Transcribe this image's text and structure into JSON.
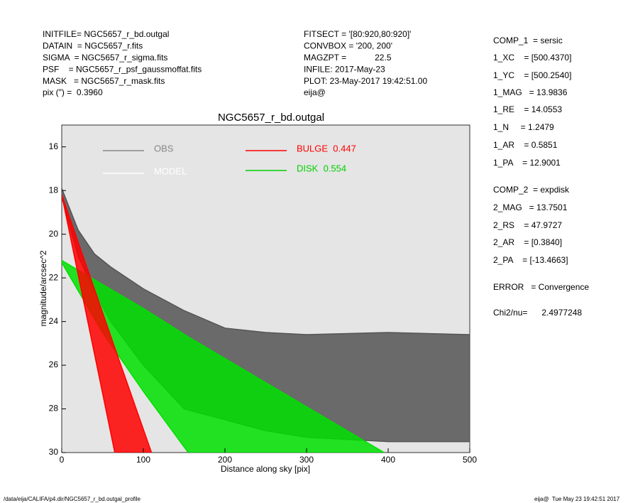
{
  "chart_data": {
    "type": "area-band",
    "title": "NGC5657_r_bd.outgal",
    "x_label": "Distance along sky [pix]",
    "y_label": "magnitude/arcsec^2",
    "xlim": [
      0,
      500
    ],
    "xticks": [
      0,
      100,
      200,
      300,
      400,
      500
    ],
    "ylim": [
      15,
      30
    ],
    "yticks": [
      16,
      18,
      20,
      22,
      24,
      26,
      28,
      30
    ],
    "y_inverted": true,
    "background": "#e5e5e5",
    "series": [
      {
        "name": "OBS",
        "color": "#555555",
        "legend_color": "#888888",
        "x": [
          0,
          20,
          40,
          60,
          100,
          150,
          200,
          250,
          300,
          400,
          500
        ],
        "y_upper": [
          17.9,
          19.8,
          20.9,
          21.5,
          22.5,
          23.5,
          24.3,
          24.5,
          24.6,
          24.5,
          24.6
        ],
        "y_lower": [
          18.3,
          21,
          22.6,
          24,
          26,
          28,
          28.5,
          29,
          29.3,
          29.5,
          29.5
        ]
      },
      {
        "name": "MODEL",
        "color": "#ffffff",
        "legend_color": "#ffffff",
        "x": [],
        "y_upper": [],
        "y_lower": []
      },
      {
        "name": "BULGE  0.447",
        "color": "#ff0000",
        "legend_color": "#ff0000",
        "x": [
          0,
          65,
          110
        ],
        "y_upper": [
          18.2,
          30,
          30
        ],
        "y_lower": [
          18.2,
          25.2,
          30
        ]
      },
      {
        "name": "DISK  0.554",
        "color": "#00e000",
        "legend_color": "#00d000",
        "x": [
          0,
          50,
          100,
          155,
          250,
          395
        ],
        "y_upper": [
          21.2,
          22.3,
          23.4,
          24.7,
          26.8,
          30
        ],
        "y_lower": [
          21.3,
          24.5,
          27.2,
          30,
          30,
          30
        ]
      }
    ]
  },
  "header_left": [
    "INITFILE= NGC5657_r_bd.outgal",
    "DATAIN  = NGC5657_r.fits",
    "SIGMA  = NGC5657_r_sigma.fits",
    "PSF    = NGC5657_r_psf_gaussmoffat.fits",
    "MASK   = NGC5657_r_mask.fits",
    "pix (\") =  0.3960"
  ],
  "header_middle": [
    "FITSECT = '[80:920,80:920]'",
    "CONVBOX = '200, 200'",
    "MAGZPT =            22.5",
    "INFILE: 2017-May-23",
    "PLOT: 23-May-2017 19:42:51.00",
    "eija@"
  ],
  "params": [
    "COMP_1  = sersic",
    "1_XC    = [500.4370]",
    "1_YC    = [500.2540]",
    "1_MAG   = 13.9836",
    "1_RE    = 14.0553",
    "1_N     = 1.2479",
    "1_AR    = 0.5851",
    "1_PA    = 12.9001",
    "COMP_2  = expdisk",
    "2_MAG   = 13.7501",
    "2_RS    = 47.9727",
    "2_AR    = [0.3840]",
    "2_PA    = [-13.4663]",
    "ERROR   = Convergence",
    "Chi2/nu=      2.4977248"
  ],
  "footer_left": "/data/eija/CALIFA/p4.dir/NGC5657_r_bd.outgal_profile",
  "footer_right": "eija@  Tue May 23 19:42:51 2017"
}
